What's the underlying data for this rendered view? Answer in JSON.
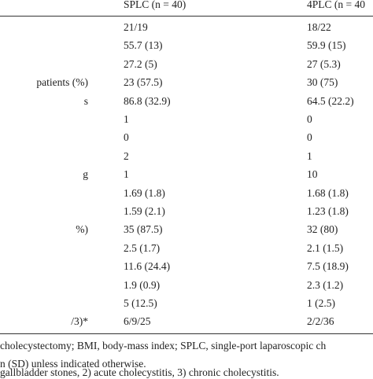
{
  "table": {
    "header": [
      "SPLC (n = 40)",
      "4PLC (n = 40"
    ],
    "rows": [
      {
        "cells": [
          "21/19",
          "18/22"
        ]
      },
      {
        "cells": [
          "55.7 (13)",
          "59.9 (15)"
        ]
      },
      {
        "cells": [
          "27.2 (5)",
          "27 (5.3)"
        ]
      },
      {
        "label": "patients (%)",
        "cells": [
          "23 (57.5)",
          "30 (75)"
        ]
      },
      {
        "label": "s",
        "cells": [
          "86.8 (32.9)",
          "64.5 (22.2)"
        ]
      },
      {
        "cells": [
          "1",
          "0"
        ]
      },
      {
        "cells": [
          "0",
          "0"
        ]
      },
      {
        "cells": [
          "2",
          "1"
        ]
      },
      {
        "label": "g",
        "cells": [
          "1",
          "10"
        ]
      },
      {
        "cells": [
          "1.69 (1.8)",
          "1.68 (1.8)"
        ]
      },
      {
        "cells": [
          "1.59 (2.1)",
          "1.23 (1.8)"
        ]
      },
      {
        "label": "%)",
        "cells": [
          "35 (87.5)",
          "32 (80)"
        ]
      },
      {
        "cells": [
          "2.5 (1.7)",
          "2.1 (1.5)"
        ]
      },
      {
        "cells": [
          "11.6 (24.4)",
          "7.5 (18.9)"
        ]
      },
      {
        "cells": [
          "1.9 (0.9)",
          "2.3 (1.2)"
        ]
      },
      {
        "cells": [
          "5 (12.5)",
          "1 (2.5)"
        ]
      },
      {
        "label": "/3)*",
        "cells": [
          "6/9/25",
          "2/2/36"
        ]
      }
    ]
  },
  "footnotes": [
    "cholecystectomy; BMI, body-mass index; SPLC, single-port laparoscopic ch",
    "n (SD) unless indicated otherwise.",
    "gallbladder stones, 2) acute cholecystitis, 3) chronic cholecystitis."
  ]
}
